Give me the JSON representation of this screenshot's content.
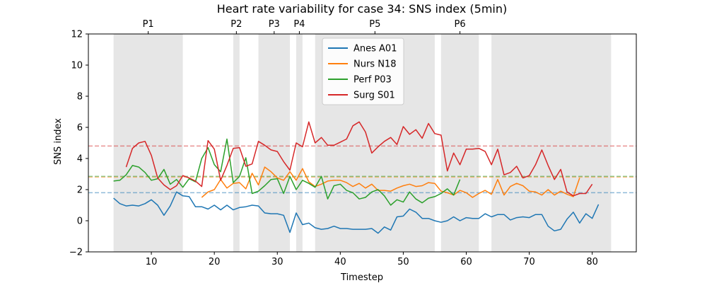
{
  "chart_data": {
    "type": "line",
    "title": "Heart rate variability for case 34: SNS index (5min)",
    "xlabel": "Timestep",
    "ylabel": "SNS index",
    "xlim": [
      0,
      87
    ],
    "ylim": [
      -2,
      12
    ],
    "xticks": [
      10,
      20,
      30,
      40,
      50,
      60,
      70,
      80
    ],
    "yticks": [
      -2,
      0,
      2,
      4,
      6,
      8,
      10,
      12
    ],
    "grid": false,
    "legend_position": "upper-center",
    "phases": [
      {
        "label": "P1",
        "start": 4,
        "end": 15
      },
      {
        "label": "P2",
        "start": 23,
        "end": 24
      },
      {
        "label": "P3",
        "start": 27,
        "end": 32
      },
      {
        "label": "P4",
        "start": 33,
        "end": 34
      },
      {
        "label": "P5",
        "start": 36,
        "end": 55
      },
      {
        "label": "P6",
        "start": 56,
        "end": 62
      },
      {
        "label": "",
        "start": 64,
        "end": 77
      },
      {
        "label": "",
        "start": 77,
        "end": 83
      }
    ],
    "reference_lines": [
      {
        "y": 1.8,
        "color": "#1f77b4"
      },
      {
        "y": 2.8,
        "color": "#ff7f0e"
      },
      {
        "y": 2.85,
        "color": "#2ca02c"
      },
      {
        "y": 4.8,
        "color": "#d62728"
      }
    ],
    "series": [
      {
        "name": "Anes A01",
        "color": "#1f77b4",
        "x_start": 4,
        "values": [
          1.45,
          1.1,
          0.95,
          1.0,
          0.95,
          1.1,
          1.35,
          1.0,
          0.35,
          0.95,
          1.85,
          1.6,
          1.55,
          0.9,
          0.9,
          0.75,
          1.0,
          0.7,
          1.0,
          0.7,
          0.85,
          0.9,
          1.0,
          0.95,
          0.5,
          0.45,
          0.45,
          0.35,
          -0.75,
          0.5,
          -0.25,
          -0.15,
          -0.45,
          -0.55,
          -0.5,
          -0.35,
          -0.5,
          -0.5,
          -0.55,
          -0.55,
          -0.55,
          -0.5,
          -0.8,
          -0.4,
          -0.6,
          0.25,
          0.3,
          0.75,
          0.55,
          0.15,
          0.15,
          0.0,
          -0.1,
          0.0,
          0.25,
          0.0,
          0.2,
          0.15,
          0.15,
          0.45,
          0.25,
          0.4,
          0.4,
          0.05,
          0.2,
          0.25,
          0.2,
          0.4,
          0.4,
          -0.35,
          -0.65,
          -0.55,
          0.1,
          0.55,
          -0.15,
          0.45,
          0.15,
          1.05
        ]
      },
      {
        "name": "Nurs N18",
        "color": "#ff7f0e",
        "x_start": 18,
        "values": [
          1.5,
          1.85,
          2.0,
          2.65,
          2.1,
          2.4,
          2.45,
          2.05,
          3.05,
          2.3,
          3.45,
          3.15,
          2.75,
          2.6,
          3.15,
          2.6,
          3.35,
          2.5,
          2.2,
          2.35,
          2.55,
          2.6,
          2.6,
          2.45,
          2.2,
          2.4,
          2.1,
          2.35,
          1.95,
          1.95,
          1.9,
          2.1,
          2.25,
          2.35,
          2.2,
          2.25,
          2.45,
          2.4,
          1.9,
          1.8,
          1.65,
          1.95,
          1.8,
          1.5,
          1.75,
          1.95,
          1.7,
          2.65,
          1.65,
          2.2,
          2.4,
          2.25,
          1.9,
          1.85,
          1.65,
          2.0,
          1.65,
          1.9,
          1.7,
          1.55,
          2.75
        ]
      },
      {
        "name": "Perf P03",
        "color": "#2ca02c",
        "x_start": 4,
        "values": [
          2.55,
          2.6,
          2.95,
          3.55,
          3.45,
          3.1,
          2.6,
          2.7,
          3.3,
          2.35,
          2.65,
          2.15,
          2.7,
          2.5,
          4.0,
          4.7,
          3.6,
          3.15,
          5.25,
          2.45,
          2.85,
          4.05,
          1.75,
          1.9,
          2.25,
          2.65,
          2.7,
          1.75,
          2.85,
          2.0,
          2.6,
          2.4,
          2.15,
          2.85,
          1.4,
          2.25,
          2.35,
          1.95,
          1.8,
          1.4,
          1.5,
          1.85,
          2.0,
          1.6,
          1.0,
          1.35,
          1.2,
          1.85,
          1.4,
          1.15,
          1.45,
          1.55,
          1.75,
          2.05,
          1.65,
          2.65
        ]
      },
      {
        "name": "Surg S01",
        "color": "#d62728",
        "x_start": 6,
        "values": [
          3.45,
          4.65,
          5.0,
          5.1,
          4.2,
          2.75,
          2.3,
          2.0,
          2.25,
          2.9,
          2.75,
          2.55,
          2.2,
          5.15,
          4.6,
          2.6,
          3.55,
          4.65,
          4.7,
          3.5,
          3.65,
          5.1,
          4.85,
          4.55,
          4.45,
          3.8,
          3.25,
          5.0,
          4.75,
          6.35,
          5.0,
          5.35,
          4.85,
          4.85,
          5.05,
          5.25,
          6.1,
          6.35,
          5.7,
          4.35,
          4.75,
          5.1,
          5.35,
          4.9,
          6.05,
          5.55,
          5.85,
          5.3,
          6.25,
          5.6,
          5.5,
          3.2,
          4.35,
          3.6,
          4.6,
          4.6,
          4.65,
          4.45,
          3.6,
          4.6,
          2.95,
          3.1,
          3.5,
          2.75,
          2.9,
          3.6,
          4.55,
          3.55,
          2.65,
          3.3,
          1.85,
          1.6,
          1.75,
          1.75,
          2.35
        ]
      }
    ]
  }
}
